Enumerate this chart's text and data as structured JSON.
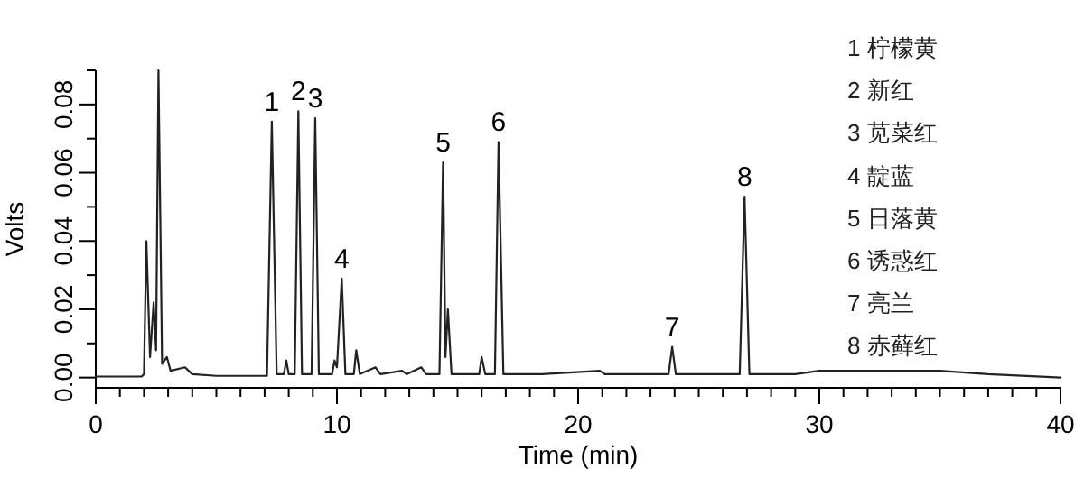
{
  "chart_data": {
    "type": "line",
    "xlabel": "Time (min)",
    "ylabel": "Volts",
    "xlim": [
      0,
      40
    ],
    "xticks": [
      0,
      {
        "value": 1,
        "label": null
      },
      {
        "value": 2,
        "label": null
      },
      {
        "value": 3,
        "label": null
      },
      {
        "value": 4,
        "label": null
      },
      {
        "value": 5,
        "label": null
      },
      {
        "value": 6,
        "label": null
      },
      {
        "value": 7,
        "label": null
      },
      {
        "value": 8,
        "label": null
      },
      {
        "value": 9,
        "label": null
      },
      10,
      {
        "value": 11,
        "label": null
      },
      {
        "value": 12,
        "label": null
      },
      {
        "value": 13,
        "label": null
      },
      {
        "value": 14,
        "label": null
      },
      {
        "value": 15,
        "label": null
      },
      {
        "value": 16,
        "label": null
      },
      {
        "value": 17,
        "label": null
      },
      {
        "value": 18,
        "label": null
      },
      {
        "value": 19,
        "label": null
      },
      20,
      {
        "value": 21,
        "label": null
      },
      {
        "value": 22,
        "label": null
      },
      {
        "value": 23,
        "label": null
      },
      {
        "value": 24,
        "label": null
      },
      {
        "value": 25,
        "label": null
      },
      {
        "value": 26,
        "label": null
      },
      {
        "value": 27,
        "label": null
      },
      {
        "value": 28,
        "label": null
      },
      {
        "value": 29,
        "label": null
      },
      30,
      {
        "value": 31,
        "label": null
      },
      {
        "value": 32,
        "label": null
      },
      {
        "value": 33,
        "label": null
      },
      {
        "value": 34,
        "label": null
      },
      {
        "value": 35,
        "label": null
      },
      {
        "value": 36,
        "label": null
      },
      {
        "value": 37,
        "label": null
      },
      {
        "value": 38,
        "label": null
      },
      {
        "value": 39,
        "label": null
      },
      40
    ],
    "ylim": [
      -0.003,
      0.09
    ],
    "yticks": [
      {
        "value": 0,
        "label": "0.00"
      },
      {
        "value": 0.01,
        "label": null
      },
      {
        "value": 0.02,
        "label": "0.02"
      },
      {
        "value": 0.03,
        "label": null
      },
      {
        "value": 0.04,
        "label": "0.04"
      },
      {
        "value": 0.05,
        "label": null
      },
      {
        "value": 0.06,
        "label": "0.06"
      },
      {
        "value": 0.07,
        "label": null
      },
      {
        "value": 0.08,
        "label": "0.08"
      },
      {
        "value": 0.09,
        "label": null
      }
    ],
    "series": [
      {
        "color": "#222222",
        "x": [
          0,
          1.9,
          2.0,
          2.1,
          2.25,
          2.4,
          2.5,
          2.6,
          2.75,
          2.95,
          3.1,
          3.7,
          4.0,
          5,
          7.1,
          7.3,
          7.5,
          7.8,
          7.9,
          8.0,
          8.25,
          8.4,
          8.55,
          8.95,
          9.1,
          9.25,
          9.8,
          9.9,
          10.0,
          10.2,
          10.35,
          10.7,
          10.8,
          10.95,
          11.6,
          11.8,
          12.7,
          12.9,
          13.5,
          13.7,
          14.25,
          14.4,
          14.5,
          14.6,
          14.75,
          15.9,
          16.0,
          16.15,
          16.55,
          16.7,
          16.9,
          18.5,
          20.9,
          21.1,
          23.75,
          23.9,
          24.05,
          26.7,
          26.9,
          27.1,
          29,
          30,
          35,
          37,
          40
        ],
        "values": [
          0.0003,
          0.0003,
          0.001,
          0.04,
          0.006,
          0.022,
          0.008,
          0.09,
          0.004,
          0.006,
          0.002,
          0.003,
          0.001,
          0.0005,
          0.0005,
          0.075,
          0.001,
          0.001,
          0.005,
          0.001,
          0.001,
          0.078,
          0.001,
          0.001,
          0.076,
          0.001,
          0.001,
          0.005,
          0.003,
          0.029,
          0.001,
          0.001,
          0.008,
          0.001,
          0.003,
          0.001,
          0.002,
          0.001,
          0.003,
          0.001,
          0.001,
          0.063,
          0.006,
          0.02,
          0.001,
          0.001,
          0.006,
          0.001,
          0.001,
          0.069,
          0.001,
          0.001,
          0.002,
          0.001,
          0.001,
          0.009,
          0.001,
          0.001,
          0.053,
          0.001,
          0.001,
          0.002,
          0.002,
          0.001,
          0.0
        ]
      }
    ],
    "annotations": [
      {
        "text": "1",
        "x": 7.3,
        "y": 0.075
      },
      {
        "text": "2",
        "x": 8.4,
        "y": 0.078
      },
      {
        "text": "3",
        "x": 9.1,
        "y": 0.076
      },
      {
        "text": "4",
        "x": 10.2,
        "y": 0.029
      },
      {
        "text": "5",
        "x": 14.4,
        "y": 0.063
      },
      {
        "text": "6",
        "x": 16.7,
        "y": 0.069
      },
      {
        "text": "7",
        "x": 23.9,
        "y": 0.009
      },
      {
        "text": "8",
        "x": 26.9,
        "y": 0.053
      },
      "1  柠檬黄",
      "2  新红",
      "3  苋菜红",
      "4  靛蓝",
      "5  日落黄",
      "6  诱惑红",
      "7  亮兰",
      "8  赤藓红"
    ]
  }
}
